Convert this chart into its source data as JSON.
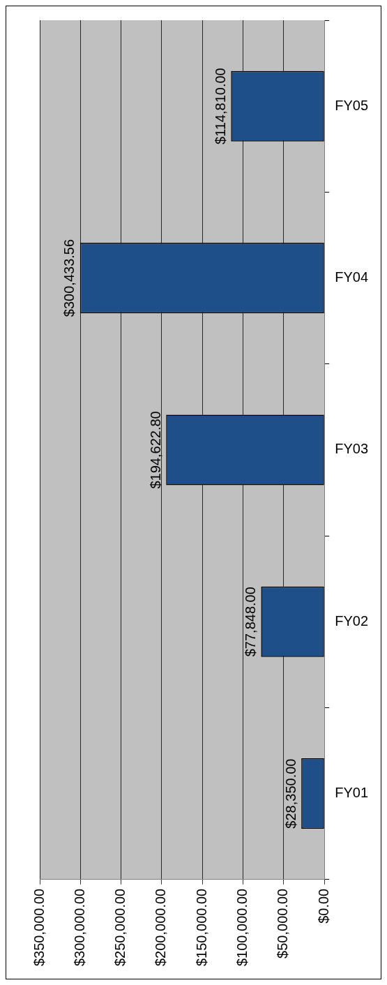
{
  "chart_data": {
    "type": "bar",
    "orientation": "horizontal",
    "categories": [
      "FY05",
      "FY04",
      "FY03",
      "FY02",
      "FY01"
    ],
    "values": [
      114810,
      300433.56,
      194622.8,
      77848,
      28350
    ],
    "value_labels": [
      "$114,810.00",
      "$300,433.56",
      "$194,622.80",
      "$77,848.00",
      "$28,350.00"
    ],
    "color": "#1f4f88",
    "xlim": [
      350000,
      0
    ],
    "xticks": [
      {
        "value": 0,
        "label": "$0.00"
      },
      {
        "value": 50000,
        "label": "$50,000.00"
      },
      {
        "value": 100000,
        "label": "$100,000.00"
      },
      {
        "value": 150000,
        "label": "$150,000.00"
      },
      {
        "value": 200000,
        "label": "$200,000.00"
      },
      {
        "value": 250000,
        "label": "$250,000.00"
      },
      {
        "value": 300000,
        "label": "$300,000.00"
      },
      {
        "value": 350000,
        "label": "$350,000.00"
      }
    ],
    "grid": "x"
  }
}
